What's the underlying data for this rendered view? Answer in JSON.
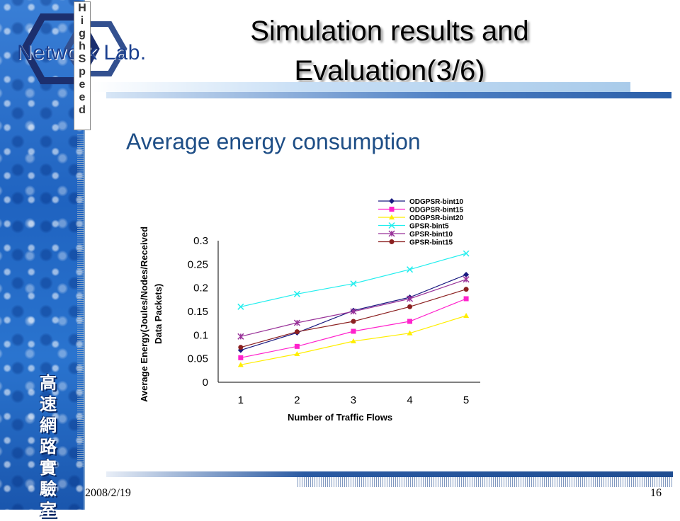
{
  "slide": {
    "title_line1": "Simulation results and",
    "title_line2": "Evaluation(3/6)",
    "subtitle": "Average energy consumption",
    "footer_date": "2008/2/19",
    "page_number": "16",
    "logo_text": "Network Lab.",
    "logo_vertical": "HighSpeed",
    "cjk_label": "高速網路實驗室"
  },
  "colors": {
    "title_text": "#000000",
    "subtitle_text": "#1e4e86",
    "header_bar": "#2a5ea8"
  },
  "chart_data": {
    "type": "line",
    "title": "",
    "xlabel": "Number of Traffic Flows",
    "ylabel_line1": "Average Energy(Joules/Nodes/Received",
    "ylabel_line2": "Data Packets)",
    "categories": [
      "1",
      "2",
      "3",
      "4",
      "5"
    ],
    "x": [
      1,
      2,
      3,
      4,
      5
    ],
    "ylim": [
      0,
      0.3
    ],
    "yticks": [
      "0",
      "0.05",
      "0.1",
      "0.15",
      "0.2",
      "0.25",
      "0.3"
    ],
    "ytick_values": [
      0,
      0.05,
      0.1,
      0.15,
      0.2,
      0.25,
      0.3
    ],
    "grid": false,
    "legend_position": "top-right",
    "series": [
      {
        "name": "ODGPSR-bint10",
        "color": "#1a1a80",
        "marker": "diamond",
        "values": [
          0.068,
          0.105,
          0.152,
          0.18,
          0.228
        ]
      },
      {
        "name": "ODGPSR-bint15",
        "color": "#ff22cc",
        "marker": "square",
        "values": [
          0.052,
          0.076,
          0.108,
          0.129,
          0.177
        ]
      },
      {
        "name": "ODGPSR-bint20",
        "color": "#ffee00",
        "marker": "triangle",
        "values": [
          0.037,
          0.06,
          0.087,
          0.104,
          0.141
        ]
      },
      {
        "name": "GPSR-bint5",
        "color": "#22eeee",
        "marker": "x",
        "values": [
          0.16,
          0.187,
          0.209,
          0.239,
          0.273
        ]
      },
      {
        "name": "GPSR-bint10",
        "color": "#993399",
        "marker": "star",
        "values": [
          0.097,
          0.126,
          0.15,
          0.177,
          0.218
        ]
      },
      {
        "name": "GPSR-bint15",
        "color": "#8b2020",
        "marker": "circle",
        "values": [
          0.074,
          0.107,
          0.129,
          0.16,
          0.197
        ]
      }
    ]
  }
}
